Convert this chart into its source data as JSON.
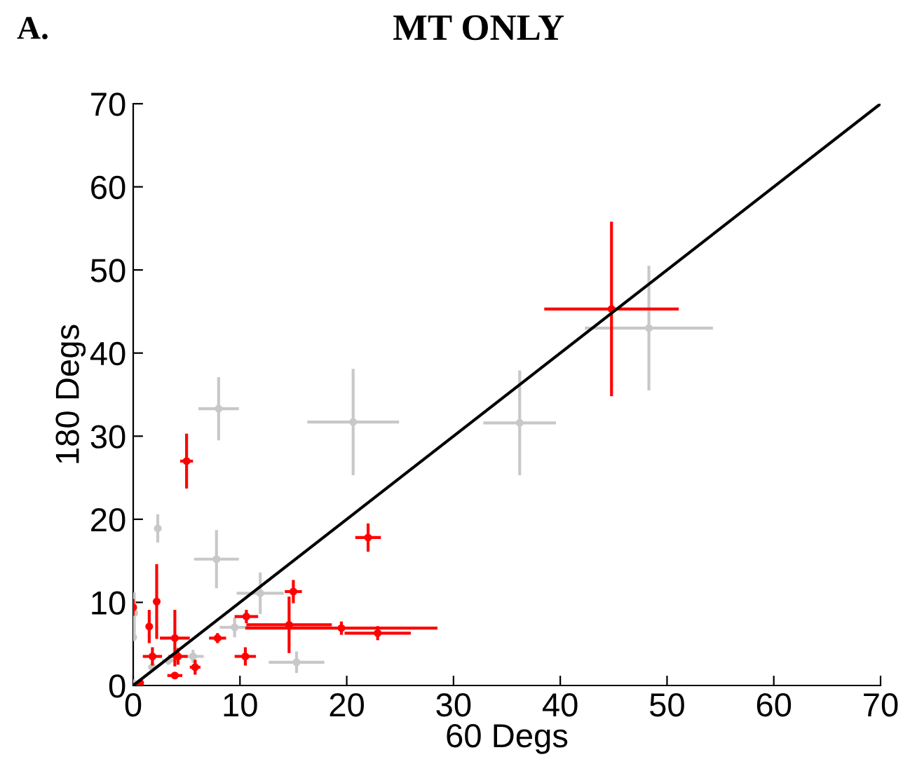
{
  "chart_data": {
    "type": "scatter",
    "title": "MT ONLY",
    "xlabel": "60 Degs",
    "ylabel": "180 Degs",
    "annotations": [
      "A."
    ],
    "xlim": [
      0,
      70
    ],
    "ylim": [
      0,
      70
    ],
    "xticks": [
      0,
      10,
      20,
      30,
      40,
      50,
      60,
      70
    ],
    "yticks": [
      0,
      10,
      20,
      30,
      40,
      50,
      60,
      70
    ],
    "grid": false,
    "marker": "circle",
    "series": [
      {
        "color": "#c8c8c8",
        "x": [
          48.3,
          36.2,
          20.6,
          8.0,
          7.8,
          2.3,
          11.9,
          9.5,
          15.3,
          5.6,
          3.3,
          0.1,
          0.0,
          1.8,
          0.0
        ],
        "values": [
          43.0,
          31.6,
          31.7,
          33.3,
          15.2,
          18.9,
          11.1,
          7.0,
          2.8,
          3.5,
          3.0,
          8.7,
          5.8,
          2.2,
          0.3
        ],
        "xerrors": [
          6.0,
          3.4,
          4.3,
          1.9,
          2.1,
          0.3,
          2.2,
          1.4,
          2.6,
          1.0,
          0.6,
          null,
          null,
          0.4,
          null
        ],
        "errors": [
          7.5,
          6.3,
          6.4,
          3.8,
          3.5,
          1.7,
          2.5,
          1.2,
          1.3,
          0.8,
          0.5,
          2.5,
          null,
          0.5,
          null
        ]
      },
      {
        "color": "#ff0000",
        "x": [
          44.8,
          22.0,
          5.0,
          15.0,
          14.6,
          19.5,
          22.9,
          10.6,
          10.5,
          7.9,
          5.8,
          3.9,
          3.9,
          4.2,
          1.8,
          2.2,
          1.5,
          0.0,
          0.65
        ],
        "values": [
          45.3,
          17.8,
          27.0,
          11.3,
          7.3,
          6.9,
          6.3,
          8.3,
          3.5,
          5.7,
          2.2,
          1.2,
          5.7,
          3.5,
          3.5,
          10.1,
          7.1,
          9.4,
          0.3
        ],
        "xerrors": [
          6.3,
          1.2,
          0.6,
          0.8,
          4.0,
          9.0,
          3.1,
          1.1,
          1.0,
          0.8,
          0.5,
          0.7,
          1.4,
          0.9,
          0.9,
          null,
          null,
          null,
          null
        ],
        "errors": [
          10.5,
          1.7,
          3.3,
          1.4,
          3.4,
          0.8,
          0.85,
          0.8,
          1.1,
          0.6,
          0.9,
          0.2,
          3.4,
          1.0,
          1.1,
          4.5,
          2.0,
          1.0,
          null
        ]
      },
      {
        "type": "line",
        "color": "#000000",
        "marker": "none",
        "x": [
          0,
          70
        ],
        "values": [
          0,
          70
        ]
      }
    ]
  }
}
